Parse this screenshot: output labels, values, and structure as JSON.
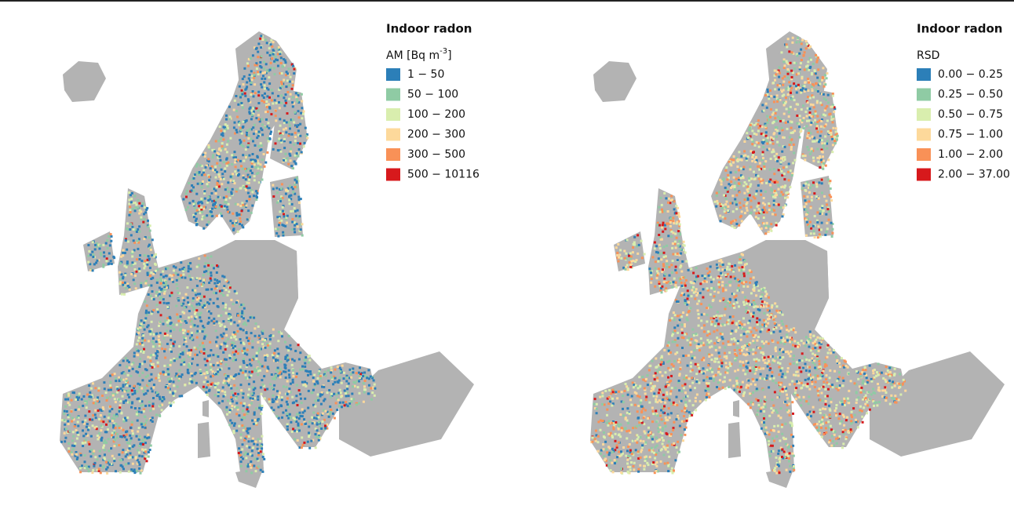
{
  "panels": [
    {
      "title": "Indoor radon",
      "legend_heading": {
        "base": "AM [Bq m",
        "superscript": "-3",
        "suffix": "]"
      },
      "legend": [
        {
          "label": "1 − 50",
          "color": "#2c7fb8"
        },
        {
          "label": "50 − 100",
          "color": "#8fcba4"
        },
        {
          "label": "100 − 200",
          "color": "#d9eeae"
        },
        {
          "label": "200 − 300",
          "color": "#fdd99b"
        },
        {
          "label": "300 − 500",
          "color": "#f99157"
        },
        {
          "label": "500 − 10116",
          "color": "#d7191c"
        }
      ]
    },
    {
      "title": "Indoor radon",
      "legend_heading": {
        "base": "RSD"
      },
      "legend": [
        {
          "label": "0.00 − 0.25",
          "color": "#2c7fb8"
        },
        {
          "label": "0.25 − 0.50",
          "color": "#8fcba4"
        },
        {
          "label": "0.50 − 0.75",
          "color": "#d9eeae"
        },
        {
          "label": "0.75 − 1.00",
          "color": "#fdd99b"
        },
        {
          "label": "1.00 − 2.00",
          "color": "#f99157"
        },
        {
          "label": "2.00 − 37.00",
          "color": "#d7191c"
        }
      ]
    }
  ]
}
